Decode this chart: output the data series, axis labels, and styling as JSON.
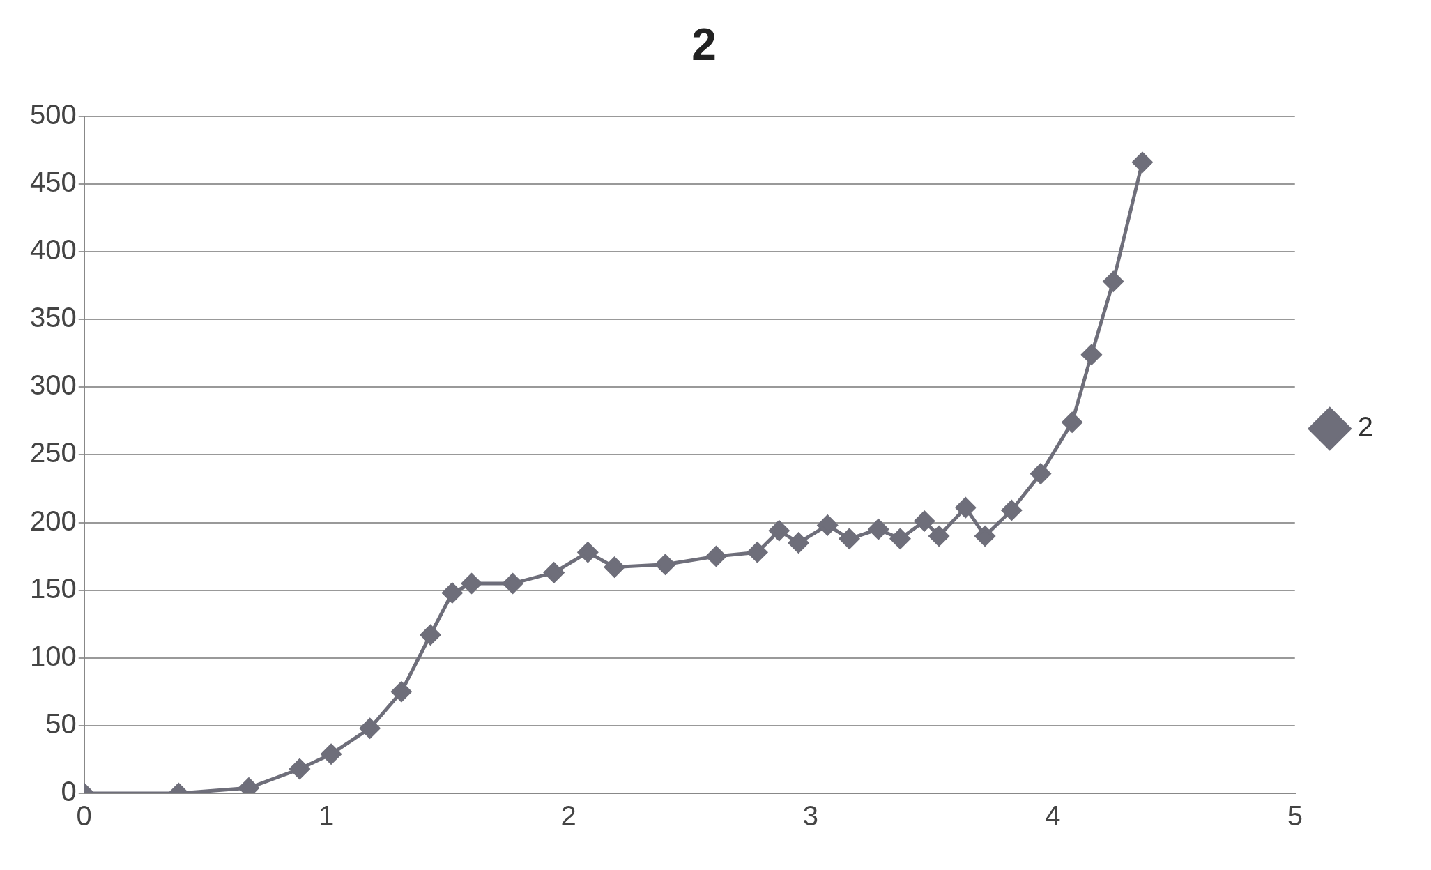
{
  "chart_data": {
    "type": "line",
    "title": "2",
    "legend": "right",
    "grid": "y",
    "marker": "diamond",
    "line_style": "solid",
    "xlim": [
      0,
      5
    ],
    "xticks": [
      0,
      1,
      2,
      3,
      4,
      5
    ],
    "ylim": [
      0,
      500
    ],
    "yticks": [
      0,
      50,
      100,
      150,
      200,
      250,
      300,
      350,
      400,
      450,
      500
    ],
    "series": [
      {
        "name": "2",
        "color": "#6e6e7a",
        "x": [
          0,
          0.39,
          0.68,
          0.89,
          1.02,
          1.18,
          1.31,
          1.43,
          1.52,
          1.6,
          1.77,
          1.94,
          2.08,
          2.19,
          2.4,
          2.61,
          2.78,
          2.87,
          2.95,
          3.07,
          3.16,
          3.28,
          3.37,
          3.47,
          3.53,
          3.64,
          3.72,
          3.83,
          3.95,
          4.08,
          4.16,
          4.25,
          4.37
        ],
        "values": [
          0,
          0,
          4,
          18,
          29,
          48,
          75,
          117,
          148,
          155,
          155,
          163,
          178,
          167,
          169,
          175,
          178,
          194,
          185,
          198,
          188,
          195,
          188,
          201,
          190,
          211,
          190,
          209,
          236,
          274,
          324,
          378,
          466
        ]
      }
    ]
  }
}
